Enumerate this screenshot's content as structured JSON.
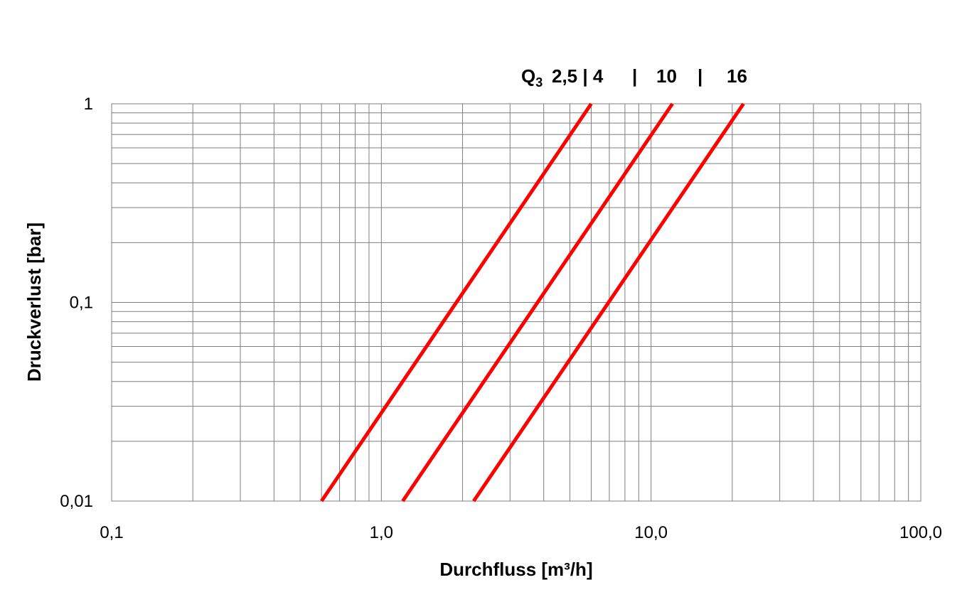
{
  "chart_data": {
    "type": "line",
    "title": "",
    "xlabel": "Durchfluss [m³/h]",
    "ylabel": "Druckverlust [bar]",
    "x_scale": "log",
    "y_scale": "log",
    "xlim": [
      0.1,
      100.0
    ],
    "ylim": [
      0.01,
      1
    ],
    "x_ticks": [
      {
        "value": 0.1,
        "label": "0,1"
      },
      {
        "value": 1.0,
        "label": "1,0"
      },
      {
        "value": 10.0,
        "label": "10,0"
      },
      {
        "value": 100.0,
        "label": "100,0"
      }
    ],
    "y_ticks": [
      {
        "value": 0.01,
        "label": "0,01"
      },
      {
        "value": 0.1,
        "label": "0,1"
      },
      {
        "value": 1,
        "label": "1"
      }
    ],
    "grid": true,
    "series_color": "#ff0000",
    "series": [
      {
        "x": [
          0.6,
          6.0
        ],
        "y": [
          0.01,
          1
        ]
      },
      {
        "x": [
          1.2,
          12.0
        ],
        "y": [
          0.01,
          1
        ]
      },
      {
        "x": [
          2.2,
          22.0
        ],
        "y": [
          0.01,
          1
        ]
      }
    ],
    "annotation": {
      "prefix": "Q",
      "subscript": "3",
      "labels": [
        "2,5 | 4",
        "|",
        "10",
        "|",
        "16"
      ]
    }
  }
}
